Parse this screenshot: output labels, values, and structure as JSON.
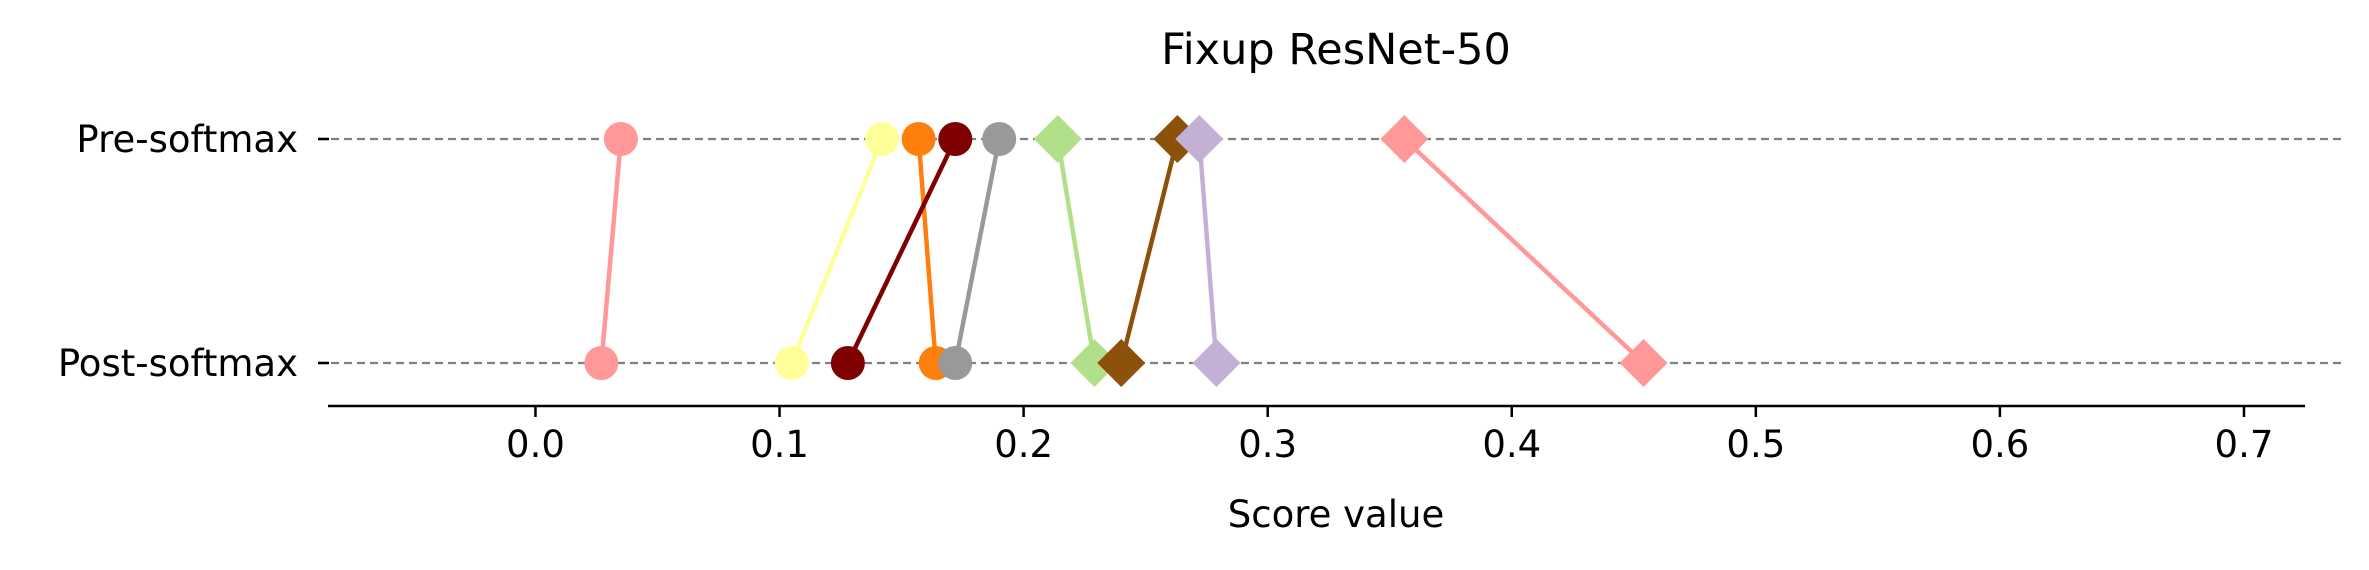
{
  "chart_data": {
    "type": "dumbbell",
    "title": "Fixup ResNet-50",
    "xlabel": "Score value",
    "ylabel": "",
    "xlim": [
      -0.085,
      0.725
    ],
    "xticks": [
      0.0,
      0.1,
      0.2,
      0.3,
      0.4,
      0.5,
      0.6,
      0.7
    ],
    "xtick_labels": [
      "0.0",
      "0.1",
      "0.2",
      "0.3",
      "0.4",
      "0.5",
      "0.6",
      "0.7"
    ],
    "categories": [
      "Pre-softmax",
      "Post-softmax"
    ],
    "grid": "horizontal dashed lines at each category",
    "legend": "none",
    "series": [
      {
        "color": "#ff9896",
        "marker": "circle",
        "values": [
          0.035,
          0.027
        ]
      },
      {
        "color": "#ffff99",
        "marker": "circle",
        "values": [
          0.142,
          0.105
        ]
      },
      {
        "color": "#ff7f0e",
        "marker": "circle",
        "values": [
          0.157,
          0.164
        ]
      },
      {
        "color": "#7f0000",
        "marker": "circle",
        "values": [
          0.172,
          0.128
        ]
      },
      {
        "color": "#999999",
        "marker": "circle",
        "values": [
          0.19,
          0.172
        ]
      },
      {
        "color": "#b2df8a",
        "marker": "diamond",
        "values": [
          0.214,
          0.229
        ]
      },
      {
        "color": "#8c510a",
        "marker": "diamond",
        "values": [
          0.263,
          0.24
        ]
      },
      {
        "color": "#c5b0d5",
        "marker": "diamond",
        "values": [
          0.272,
          0.279
        ]
      },
      {
        "color": "#ff9896",
        "marker": "diamond",
        "values": [
          0.356,
          0.454
        ]
      }
    ]
  }
}
